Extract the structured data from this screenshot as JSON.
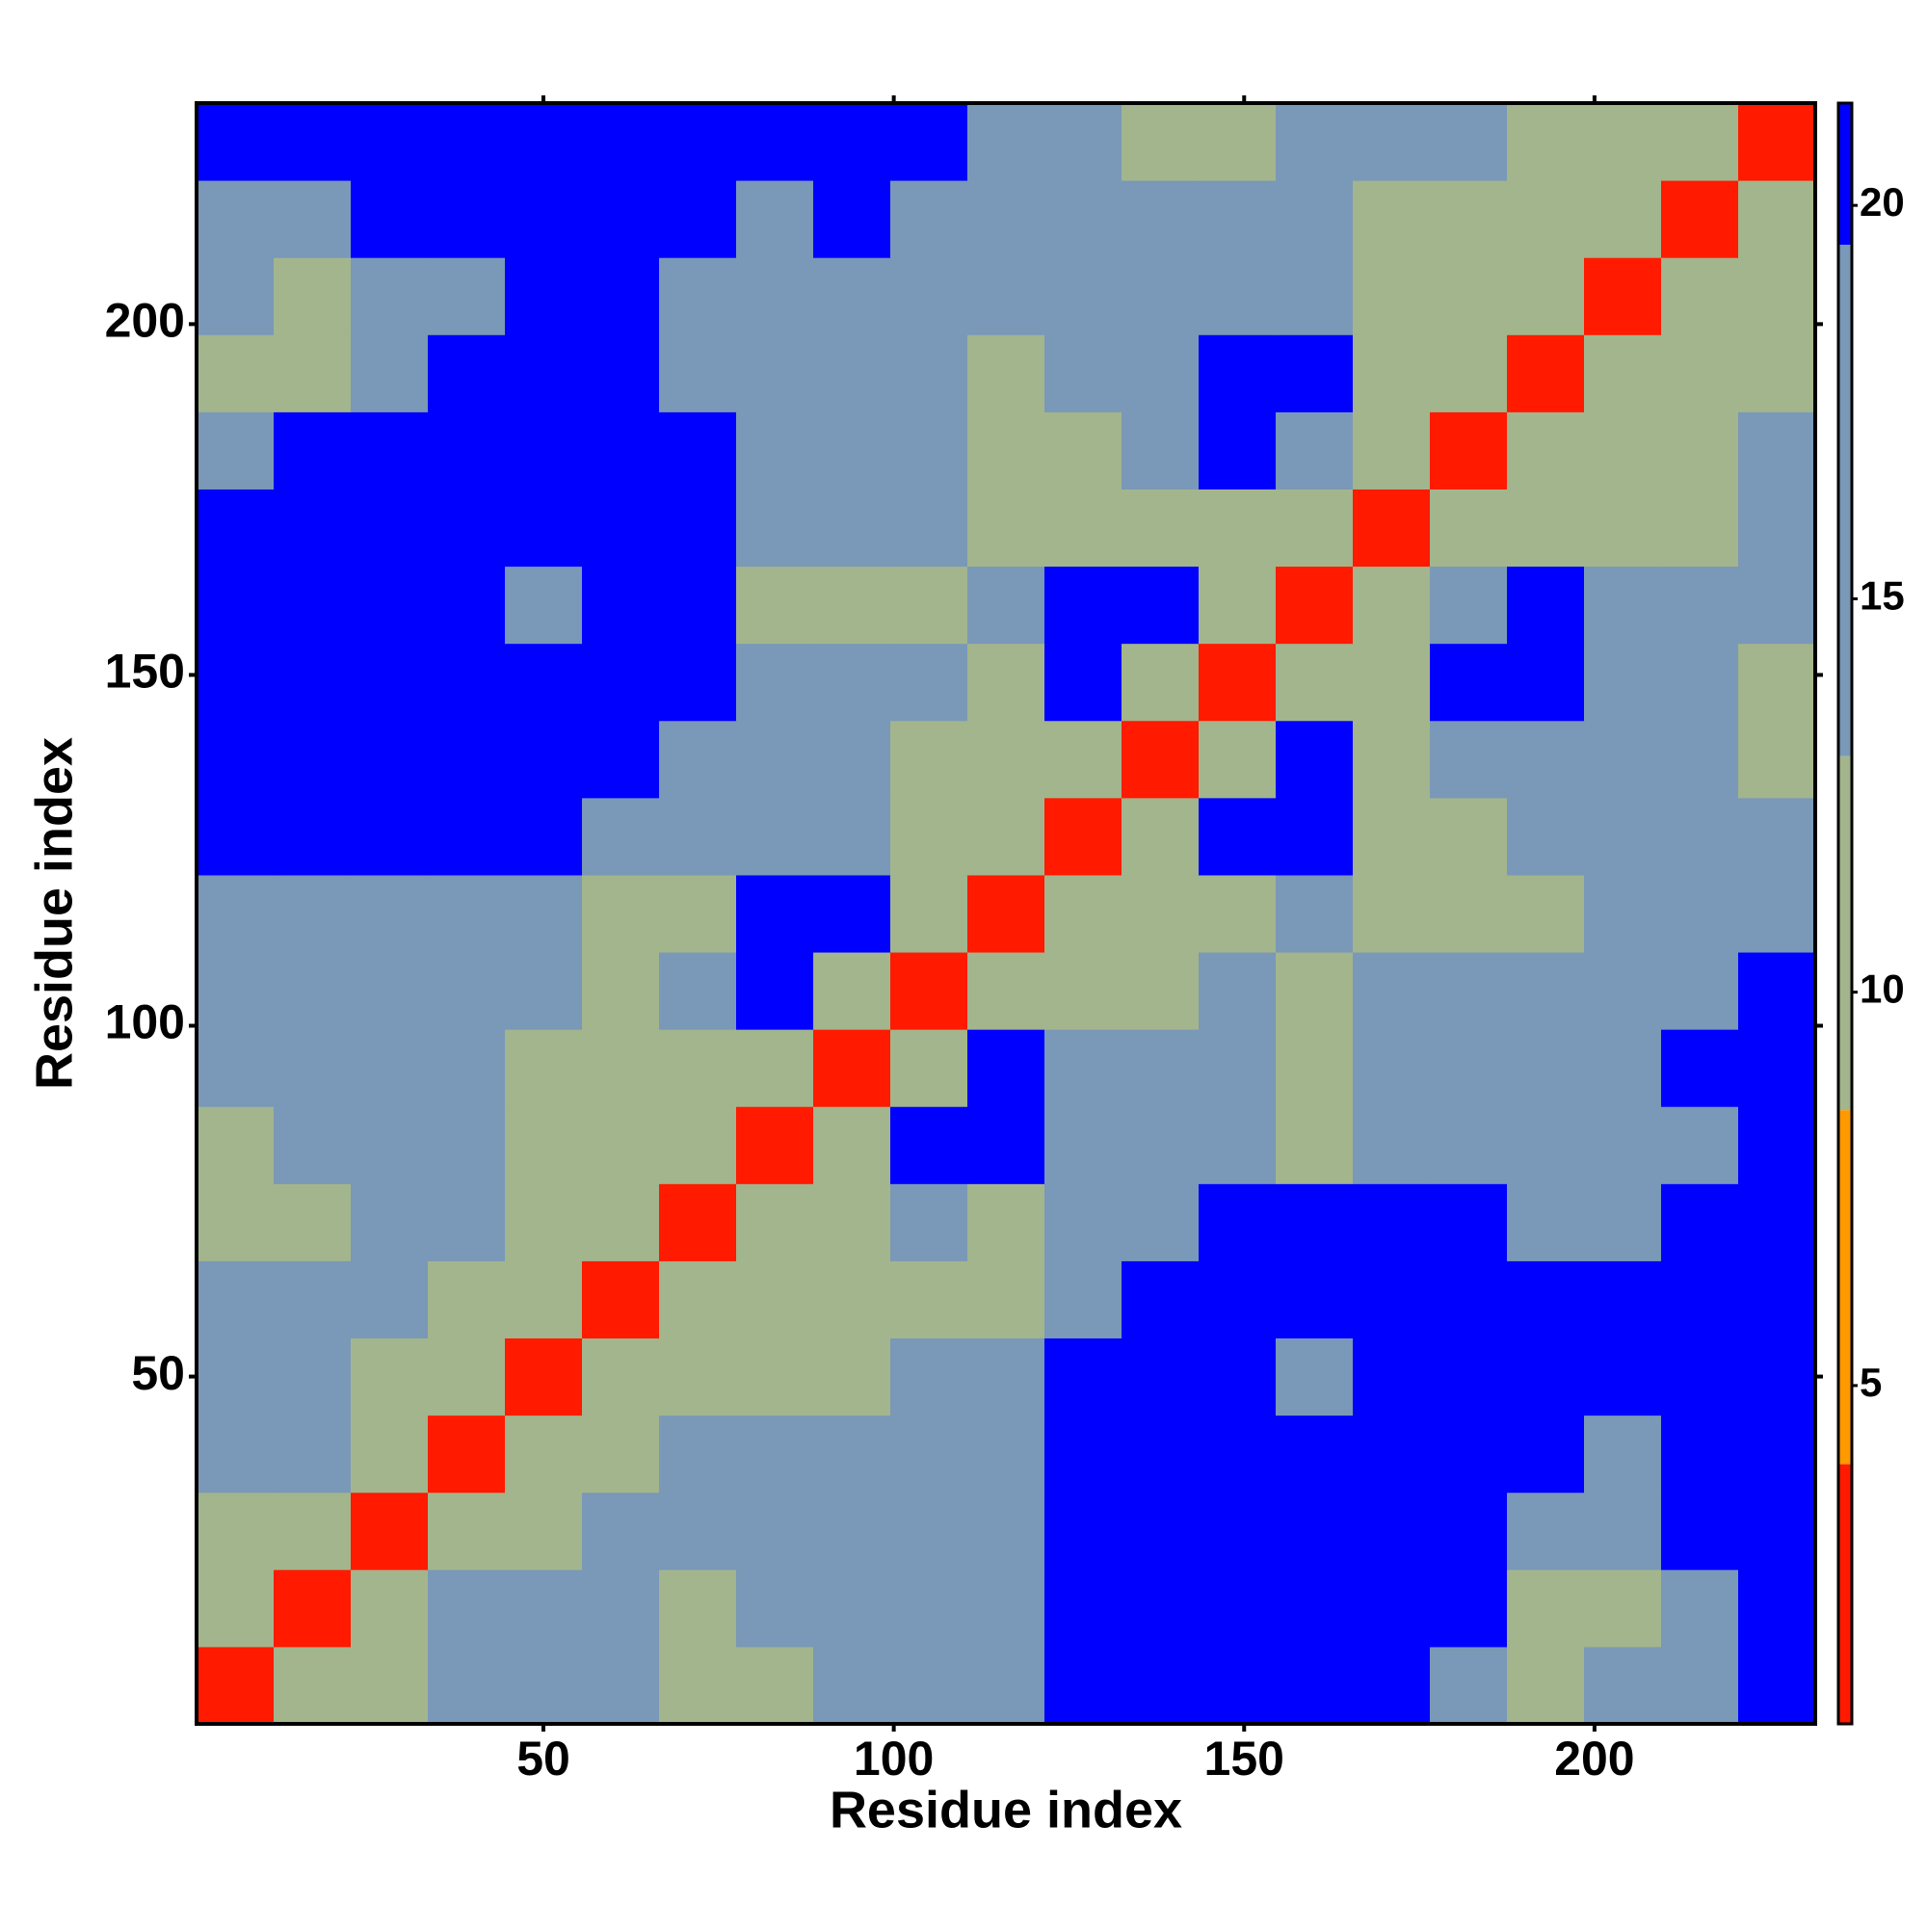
{
  "chart_data": {
    "type": "heatmap",
    "x_label": "Residue index",
    "y_label": "Residue index",
    "xlim": [
      0.5,
      231.5
    ],
    "ylim": [
      0.5,
      231.5
    ],
    "xticks": [
      50,
      100,
      150,
      200
    ],
    "yticks": [
      50,
      100,
      150,
      200
    ],
    "cell_size": 11,
    "x": [
      6,
      17,
      28,
      39,
      50,
      61,
      72,
      83,
      94,
      105,
      116,
      127,
      138,
      149,
      160,
      171,
      182,
      193,
      204,
      215,
      226
    ],
    "y": [
      6,
      17,
      28,
      39,
      50,
      61,
      72,
      83,
      94,
      105,
      116,
      127,
      138,
      149,
      160,
      171,
      182,
      193,
      204,
      215,
      226
    ],
    "z": [
      [
        3,
        9,
        13,
        14,
        14,
        15,
        10,
        11,
        14,
        14,
        14,
        21,
        21,
        21,
        21,
        21,
        14,
        13,
        14,
        15,
        21
      ],
      [
        9,
        3,
        9,
        16,
        18,
        14,
        13,
        14,
        16,
        15,
        15,
        21,
        21,
        21,
        21,
        21,
        21,
        11,
        12,
        15,
        21
      ],
      [
        13,
        9,
        3,
        9,
        13,
        14,
        14,
        15,
        14,
        16,
        16,
        21,
        21,
        21,
        21,
        21,
        21,
        14,
        15,
        21,
        21
      ],
      [
        14,
        16,
        9,
        3,
        9,
        13,
        14,
        14,
        15,
        16,
        16,
        21,
        21,
        21,
        21,
        21,
        21,
        21,
        16,
        21,
        21
      ],
      [
        14,
        18,
        13,
        9,
        3,
        9,
        13,
        13,
        13,
        14,
        15,
        21,
        21,
        21,
        18,
        21,
        21,
        21,
        21,
        21,
        21
      ],
      [
        15,
        14,
        14,
        13,
        9,
        3,
        9,
        12,
        12,
        13,
        12,
        16,
        21,
        21,
        21,
        21,
        21,
        21,
        21,
        21,
        21
      ],
      [
        10,
        13,
        14,
        14,
        13,
        9,
        3,
        9,
        11,
        14,
        13,
        14,
        17,
        21,
        21,
        21,
        21,
        18,
        17,
        21,
        21
      ],
      [
        11,
        14,
        15,
        14,
        13,
        12,
        9,
        3,
        9,
        20,
        21,
        16,
        17,
        14,
        13,
        14,
        15,
        14,
        16,
        15,
        21
      ],
      [
        14,
        16,
        14,
        15,
        13,
        12,
        11,
        9,
        3,
        9,
        20,
        14,
        15,
        16,
        12,
        15,
        17,
        16,
        16,
        21,
        21
      ],
      [
        14,
        15,
        16,
        16,
        14,
        13,
        14,
        20,
        9,
        3,
        9,
        13,
        12,
        15,
        13,
        16,
        16,
        15,
        17,
        15,
        21
      ],
      [
        14,
        15,
        16,
        16,
        15,
        12,
        13,
        21,
        20,
        9,
        3,
        9,
        13,
        13,
        15,
        11,
        9,
        13,
        14,
        14,
        16
      ],
      [
        21,
        21,
        21,
        21,
        21,
        16,
        14,
        16,
        14,
        13,
        9,
        3,
        9,
        20,
        20,
        13,
        13,
        16,
        15,
        14,
        14
      ],
      [
        21,
        21,
        21,
        21,
        21,
        21,
        17,
        17,
        15,
        12,
        13,
        9,
        3,
        9,
        20,
        13,
        14,
        17,
        16,
        15,
        13
      ],
      [
        21,
        21,
        21,
        21,
        21,
        21,
        21,
        14,
        16,
        15,
        13,
        20,
        9,
        3,
        9,
        13,
        21,
        21,
        14,
        15,
        13
      ],
      [
        21,
        21,
        21,
        21,
        18,
        21,
        21,
        13,
        12,
        13,
        15,
        20,
        20,
        9,
        3,
        9,
        18,
        21,
        16,
        14,
        14
      ],
      [
        21,
        21,
        21,
        21,
        21,
        21,
        21,
        14,
        15,
        16,
        11,
        13,
        13,
        13,
        9,
        3,
        9,
        13,
        13,
        12,
        16
      ],
      [
        14,
        21,
        21,
        21,
        21,
        21,
        21,
        15,
        17,
        16,
        9,
        13,
        14,
        21,
        18,
        9,
        3,
        9,
        11,
        10,
        14
      ],
      [
        13,
        11,
        14,
        21,
        21,
        21,
        18,
        14,
        16,
        15,
        13,
        16,
        17,
        21,
        21,
        13,
        9,
        3,
        9,
        12,
        13
      ],
      [
        14,
        12,
        15,
        16,
        21,
        21,
        17,
        16,
        16,
        17,
        14,
        15,
        16,
        14,
        16,
        13,
        11,
        9,
        3,
        9,
        12
      ],
      [
        15,
        15,
        21,
        21,
        21,
        21,
        21,
        15,
        21,
        15,
        14,
        14,
        15,
        15,
        14,
        12,
        10,
        12,
        9,
        3,
        9
      ],
      [
        21,
        21,
        21,
        21,
        21,
        21,
        21,
        21,
        21,
        21,
        16,
        14,
        13,
        13,
        14,
        16,
        14,
        13,
        12,
        9,
        3
      ]
    ],
    "clim": [
      0.7,
      21.3
    ],
    "cbticks": [
      5,
      10,
      15,
      20
    ],
    "colorscale": [
      [
        4,
        "#ff1a00"
      ],
      [
        8.5,
        "#ff9900"
      ],
      [
        13,
        "#a3b58c"
      ],
      [
        19.5,
        "#7a98b8"
      ],
      [
        21.3,
        "#0000ff"
      ]
    ]
  }
}
